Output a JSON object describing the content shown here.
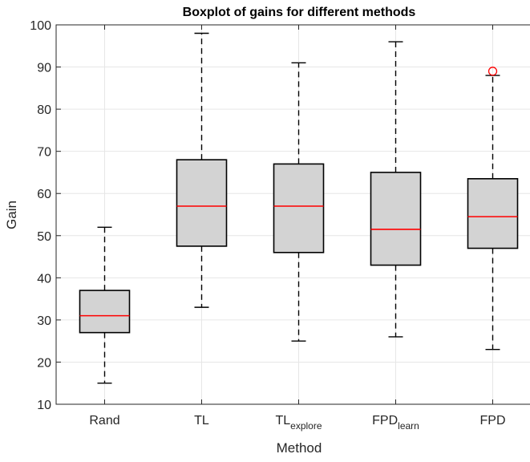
{
  "chart_data": {
    "type": "box",
    "title": "Boxplot of gains for different methods",
    "xlabel": "Method",
    "ylabel": "Gain",
    "ylim": [
      10,
      100
    ],
    "yticks": [
      10,
      20,
      30,
      40,
      50,
      60,
      70,
      80,
      90,
      100
    ],
    "grid": true,
    "categories": [
      {
        "label": "Rand",
        "sub": ""
      },
      {
        "label": "TL",
        "sub": ""
      },
      {
        "label": "TL",
        "sub": "explore"
      },
      {
        "label": "FPD",
        "sub": "learn"
      },
      {
        "label": "FPD",
        "sub": ""
      }
    ],
    "boxes": [
      {
        "whisker_low": 15,
        "q1": 27,
        "median": 31,
        "q3": 37,
        "whisker_high": 52,
        "outliers": []
      },
      {
        "whisker_low": 33,
        "q1": 47.5,
        "median": 57,
        "q3": 68,
        "whisker_high": 98,
        "outliers": []
      },
      {
        "whisker_low": 25,
        "q1": 46,
        "median": 57,
        "q3": 67,
        "whisker_high": 91,
        "outliers": []
      },
      {
        "whisker_low": 26,
        "q1": 43,
        "median": 51.5,
        "q3": 65,
        "whisker_high": 96,
        "outliers": []
      },
      {
        "whisker_low": 23,
        "q1": 47,
        "median": 54.5,
        "q3": 63.5,
        "whisker_high": 88,
        "outliers": [
          89
        ]
      }
    ],
    "colors": {
      "box_fill": "#d3d3d3",
      "median": "#ff0000",
      "outlier": "#ff0000",
      "grid": "#e6e6e6",
      "axis": "#262626"
    }
  }
}
